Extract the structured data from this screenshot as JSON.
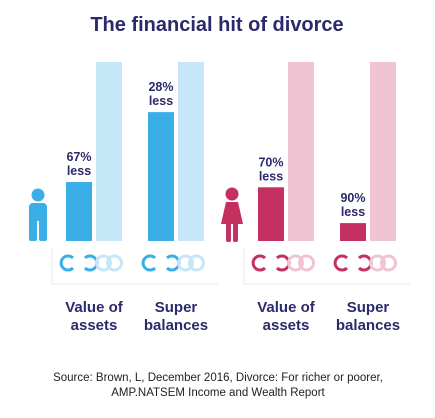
{
  "chart_data": {
    "type": "bar",
    "title": "The financial hit of divorce",
    "categories": [
      "Value of assets",
      "Super balances"
    ],
    "baseline_value": 100,
    "groups": [
      {
        "icon": "man-icon",
        "colors": {
          "bar": "#3aaee6",
          "baseline": "#c5e7f7",
          "icon": "#3aaee6"
        },
        "bars": [
          {
            "category": "Value of assets",
            "category_lines": [
              "Value of",
              "assets"
            ],
            "value": 33,
            "label_lines": [
              "67%",
              "less"
            ]
          },
          {
            "category": "Super balances",
            "category_lines": [
              "Super",
              "balances"
            ],
            "value": 72,
            "label_lines": [
              "28%",
              "less"
            ]
          }
        ]
      },
      {
        "icon": "woman-icon",
        "colors": {
          "bar": "#c4305f",
          "baseline": "#f0c4d3",
          "icon": "#c4305f"
        },
        "bars": [
          {
            "category": "Value of assets",
            "category_lines": [
              "Value of",
              "assets"
            ],
            "value": 30,
            "label_lines": [
              "70%",
              "less"
            ]
          },
          {
            "category": "Super balances",
            "category_lines": [
              "Super",
              "balances"
            ],
            "value": 10,
            "label_lines": [
              "90%",
              "less"
            ]
          }
        ]
      }
    ],
    "legend": "none",
    "grid": false
  },
  "source": {
    "line1": "Source: Brown, L, December 2016, Divorce: For richer or poorer,",
    "line2": "AMP.NATSEM Income and Wealth Report"
  }
}
